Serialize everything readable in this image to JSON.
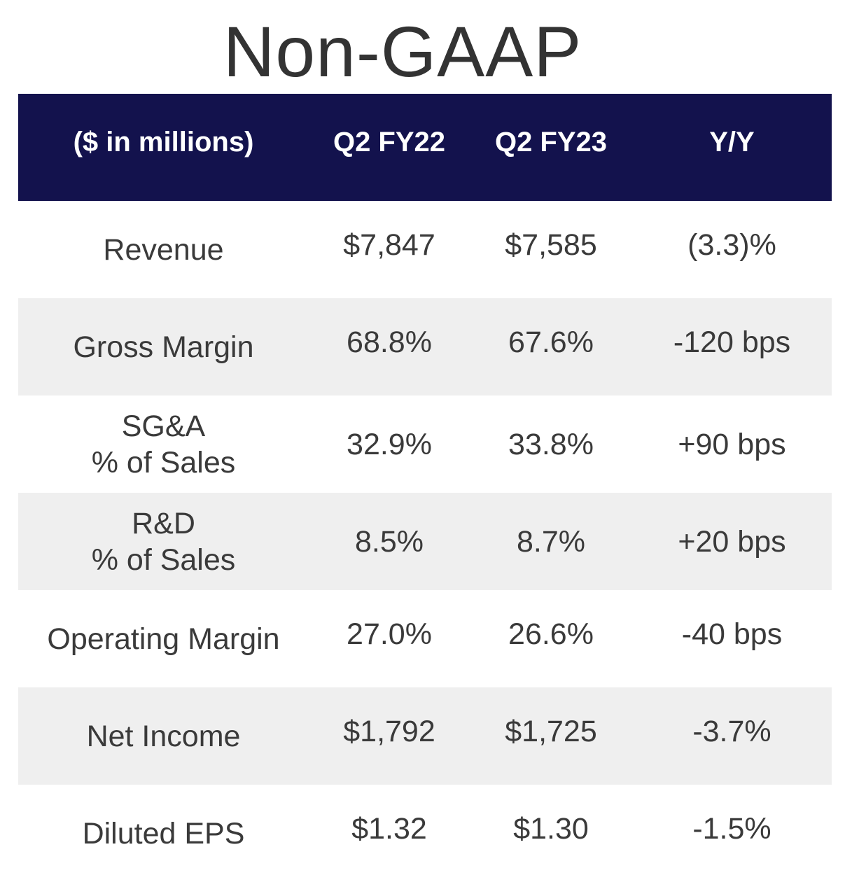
{
  "title": "Non-GAAP",
  "table": {
    "headers": [
      "($ in millions)",
      "Q2 FY22",
      "Q2 FY23",
      "Y/Y"
    ],
    "rows": [
      {
        "label_lines": [
          "Revenue"
        ],
        "q2fy22": "$7,847",
        "q2fy23": "$7,585",
        "yy": "(3.3)%"
      },
      {
        "label_lines": [
          "Gross Margin"
        ],
        "q2fy22": "68.8%",
        "q2fy23": "67.6%",
        "yy": "-120 bps"
      },
      {
        "label_lines": [
          "SG&A",
          "% of Sales"
        ],
        "q2fy22": "32.9%",
        "q2fy23": "33.8%",
        "yy": "+90 bps"
      },
      {
        "label_lines": [
          "R&D",
          "% of Sales"
        ],
        "q2fy22": "8.5%",
        "q2fy23": "8.7%",
        "yy": "+20 bps"
      },
      {
        "label_lines": [
          "Operating Margin"
        ],
        "q2fy22": "27.0%",
        "q2fy23": "26.6%",
        "yy": "-40 bps"
      },
      {
        "label_lines": [
          "Net Income"
        ],
        "q2fy22": "$1,792",
        "q2fy23": "$1,725",
        "yy": "-3.7%"
      },
      {
        "label_lines": [
          "Diluted EPS"
        ],
        "q2fy22": "$1.32",
        "q2fy23": "$1.30",
        "yy": "-1.5%"
      }
    ]
  },
  "colors": {
    "header_bg": "#13124d",
    "shaded_row": "#efefef",
    "text": "#3a3a3a"
  }
}
